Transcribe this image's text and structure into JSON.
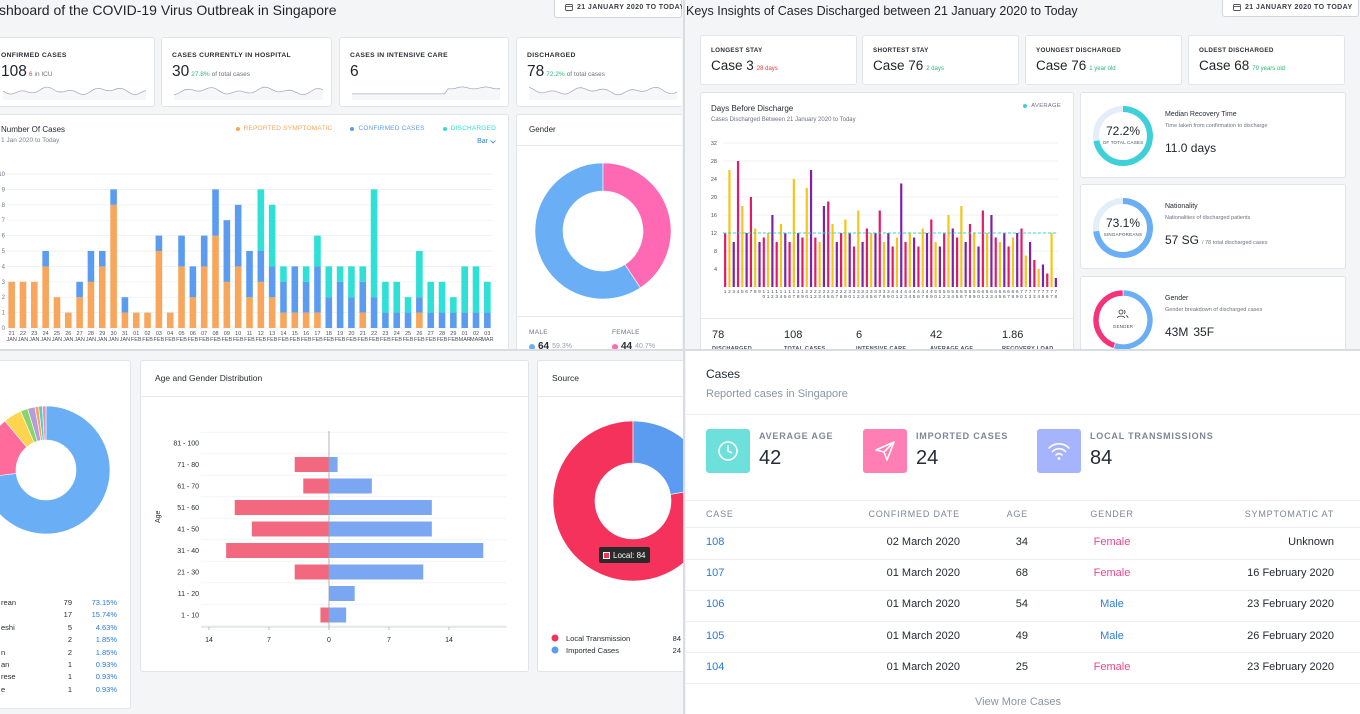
{
  "dashboard": {
    "title": "shboard of the COVID-19 Virus Outbreak in Singapore",
    "date_range": "21 JANUARY 2020 TO TODAY",
    "stats": [
      {
        "label": "ONFIRMED CASES",
        "value": 108,
        "highlight": "6",
        "note": "in ICU",
        "highlight_color": "#e53935"
      },
      {
        "label": "CASES CURRENTLY IN HOSPITAL",
        "value": 30,
        "highlight": "27.8%",
        "note": "of total cases",
        "highlight_color": "#2bb673"
      },
      {
        "label": "CASES IN INTENSIVE CARE",
        "value": 6
      },
      {
        "label": "DISCHARGED",
        "value": 78,
        "highlight": "72.2%",
        "note": "of total cases",
        "highlight_color": "#2bb673"
      }
    ],
    "cases_chart": {
      "type": "bar",
      "stacked": true,
      "title": "Number Of Cases",
      "subtitle": "1 Jan 2020 to Today",
      "toggle": "Bar",
      "categories": [
        "21 JAN",
        "22 JAN",
        "23 JAN",
        "24 JAN",
        "25 JAN",
        "26 JAN",
        "27 JAN",
        "28 JAN",
        "29 JAN",
        "30 JAN",
        "31 JAN",
        "01 FEB",
        "02 FEB",
        "03 FEB",
        "04 FEB",
        "05 FEB",
        "06 FEB",
        "07 FEB",
        "08 FEB",
        "09 FEB",
        "10 FEB",
        "11 FEB",
        "12 FEB",
        "13 FEB",
        "14 FEB",
        "15 FEB",
        "16 FEB",
        "17 FEB",
        "18 FEB",
        "19 FEB",
        "20 FEB",
        "21 FEB",
        "22 FEB",
        "23 FEB",
        "24 FEB",
        "25 FEB",
        "26 FEB",
        "27 FEB",
        "28 FEB",
        "29 FEB",
        "01 MAR",
        "02 MAR",
        "03 MAR"
      ],
      "series": [
        {
          "name": "REPORTED SYMPTOMATIC",
          "color": "#f7a65c",
          "values": [
            3,
            3,
            3,
            4,
            2,
            1,
            2,
            3,
            4,
            8,
            1,
            1,
            1,
            5,
            1,
            4,
            2,
            4,
            6,
            3,
            4,
            2,
            3,
            2,
            1,
            1,
            1,
            1,
            0,
            0,
            0,
            1,
            0,
            0,
            0,
            0,
            1,
            0,
            0,
            0,
            0,
            0,
            0
          ]
        },
        {
          "name": "CONFIRMED CASES",
          "color": "#5b9cf0",
          "values": [
            0,
            0,
            0,
            1,
            0,
            0,
            1,
            2,
            1,
            1,
            1,
            0,
            0,
            1,
            0,
            2,
            2,
            2,
            3,
            4,
            4,
            3,
            2,
            2,
            2,
            3,
            2,
            3,
            2,
            3,
            2,
            2,
            2,
            1,
            1,
            1,
            1,
            1,
            1,
            1,
            1,
            1,
            1
          ]
        },
        {
          "name": "DISCHARGED",
          "color": "#2ee0d6",
          "values": [
            0,
            0,
            0,
            0,
            0,
            0,
            0,
            0,
            0,
            0,
            0,
            0,
            0,
            0,
            0,
            0,
            0,
            0,
            0,
            0,
            0,
            0,
            4,
            4,
            1,
            0,
            1,
            2,
            2,
            1,
            2,
            1,
            7,
            2,
            2,
            1,
            3,
            2,
            2,
            1,
            3,
            3,
            2
          ]
        }
      ],
      "ylim": [
        0,
        10
      ],
      "yticks": [
        0,
        1,
        2,
        3,
        4,
        5,
        6,
        7,
        8,
        9,
        10
      ],
      "grid": true
    },
    "gender_chart": {
      "type": "donut",
      "title": "Gender",
      "categories": [
        "MALE",
        "FEMALE"
      ],
      "values": [
        64,
        44
      ],
      "percent_labels": [
        "59.3%",
        "40.7%"
      ],
      "colors": [
        "#6aaef5",
        "#ff69b4"
      ]
    }
  },
  "insights": {
    "title": "Keys Insights of Cases Discharged between 21 January 2020 to Today",
    "date_range": "21 JANUARY 2020 TO TODAY",
    "stats": [
      {
        "label": "LONGEST STAY",
        "value": "Case 3",
        "note": "28 days",
        "note_color": "#e53935"
      },
      {
        "label": "SHORTEST STAY",
        "value": "Case 76",
        "note": "2 days",
        "note_color": "#2bb673"
      },
      {
        "label": "YOUNGEST DISCHARGED",
        "value": "Case 76",
        "note": "1 year old",
        "note_color": "#2bb673"
      },
      {
        "label": "OLDEST DISCHARGED",
        "value": "Case 68",
        "note": "79 years old",
        "note_color": "#2bb673"
      }
    ],
    "discharge_chart": {
      "type": "bar",
      "title": "Days Before Discharge",
      "subtitle": "Cases Discharged Between 21 January 2020 to Today",
      "legend": "AVERAGE",
      "average": 12,
      "average_color": "#3ed0d8",
      "categories": [
        1,
        2,
        3,
        4,
        5,
        6,
        7,
        8,
        9,
        10,
        11,
        12,
        13,
        14,
        15,
        16,
        17,
        18,
        19,
        20,
        21,
        22,
        23,
        24,
        25,
        26,
        27,
        28,
        29,
        30,
        31,
        32,
        33,
        34,
        35,
        36,
        37,
        38,
        39,
        40,
        41,
        42,
        43,
        44,
        45,
        46,
        47,
        48,
        49,
        50,
        51,
        52,
        53,
        54,
        55,
        56,
        57,
        58,
        59,
        60,
        61,
        62,
        63,
        64,
        65,
        66,
        67,
        68,
        69,
        70,
        71,
        72,
        73,
        74,
        75,
        76,
        77,
        78
      ],
      "values": [
        12,
        26,
        10,
        28,
        18,
        12,
        20,
        13,
        10,
        11,
        12,
        16,
        10,
        14,
        12,
        10,
        24,
        12,
        11,
        22,
        26,
        11,
        10,
        18,
        19,
        14,
        10,
        12,
        15,
        12,
        9,
        17,
        10,
        13,
        12,
        12,
        17,
        10,
        12,
        9,
        11,
        23,
        10,
        12,
        11,
        9,
        13,
        12,
        15,
        10,
        9,
        12,
        16,
        13,
        11,
        18,
        10,
        14,
        12,
        9,
        17,
        12,
        16,
        11,
        10,
        12,
        9,
        11,
        12,
        13,
        7,
        10,
        6,
        4,
        5,
        3,
        12,
        2
      ],
      "palette": [
        "#e3196b",
        "#f5c518",
        "#7b22a8"
      ],
      "ylim": [
        0,
        32
      ],
      "yticks": [
        4,
        8,
        12,
        16,
        20,
        24,
        28,
        32
      ],
      "grid": true
    },
    "summary": [
      {
        "value": 78,
        "label": "DISCHARGED"
      },
      {
        "value": 108,
        "label": "TOTAL CASES"
      },
      {
        "value": 6,
        "label": "INTENSIVE CARE"
      },
      {
        "value": 42,
        "label": "AVERAGE AGE"
      },
      {
        "value": 1.86,
        "label": "RECOVERY LOAD"
      }
    ],
    "cards": [
      {
        "type": "ring",
        "value": 72.2,
        "value_label": "72.2%",
        "caption": "OF TOTAL CASES",
        "color": "#3ed0d8",
        "title": "Median Recovery Time",
        "subtitle": "Time taken from confirmation to discharge",
        "figure": "11.0 days"
      },
      {
        "type": "ring",
        "value": 73.1,
        "value_label": "73.1%",
        "caption": "SINGAPOREANS",
        "color": "#6aaef5",
        "title": "Nationality",
        "subtitle": "Nationalities of discharged patients",
        "figure": "57 SG",
        "figure_note": "/ 78 total discharged cases"
      },
      {
        "type": "donut",
        "caption": "GENDER",
        "values": [
          43,
          35
        ],
        "value_labels": [
          "43M",
          "35F"
        ],
        "colors": [
          "#6aaef5",
          "#f5327a"
        ],
        "title": "Gender",
        "subtitle": "Gender breakdown of discharged cases"
      }
    ]
  },
  "distribution": {
    "nationality_chart": {
      "type": "donut",
      "categories": [
        "rean",
        null,
        "eshi",
        null,
        "n",
        "an",
        "rese",
        "e"
      ],
      "values": [
        79,
        17,
        5,
        2,
        2,
        1,
        1,
        1
      ],
      "percent_labels": [
        "73.15%",
        "15.74%",
        "4.63%",
        "1.85%",
        "1.85%",
        "0.93%",
        "0.93%",
        "0.93%"
      ],
      "colors": [
        "#6aaef5",
        "#ff6b9a",
        "#ffd54f",
        "#8bd36b",
        "#b39ddb",
        "#ff9f5a",
        "#4dd0c8",
        "#f48fb1"
      ]
    },
    "age_chart": {
      "type": "bar",
      "orientation": "horizontal",
      "title": "Age and Gender Distribution",
      "y_label": "Age",
      "categories": [
        "1 - 10",
        "11 - 20",
        "21 - 30",
        "31 - 40",
        "41 - 50",
        "51 - 60",
        "61 - 70",
        "71 - 80",
        "81 - 100"
      ],
      "series": [
        {
          "color": "#f2687f",
          "values": [
            -1,
            0,
            -4,
            -12,
            -9,
            -11,
            -3,
            -4,
            0
          ]
        },
        {
          "color": "#7ba7f2",
          "values": [
            2,
            3,
            11,
            18,
            12,
            12,
            5,
            1,
            0
          ]
        }
      ],
      "xlim": [
        -14,
        20
      ],
      "xticks": [
        {
          "value": -14,
          "label": "14"
        },
        {
          "value": -7,
          "label": "7"
        },
        0,
        7,
        14
      ]
    },
    "source_chart": {
      "type": "donut",
      "title": "Source",
      "categories": [
        "Local Transmission",
        "Imported Cases"
      ],
      "values": [
        84,
        24
      ],
      "colors": [
        "#f5325c",
        "#5b9cf0"
      ],
      "tooltip": "Local: 84"
    }
  },
  "cases": {
    "title": "Cases",
    "subtitle": "Reported cases in Singapore",
    "stats": [
      {
        "label": "AVERAGE AGE",
        "value": 42,
        "color": "#6ee0dc"
      },
      {
        "label": "IMPORTED CASES",
        "value": 24,
        "color": "#ff7eb3"
      },
      {
        "label": "LOCAL TRANSMISSIONS",
        "value": 84,
        "color": "#a5b4fc"
      }
    ],
    "table": {
      "header": [
        "CASE",
        "CONFIRMED DATE",
        "AGE",
        "GENDER",
        "SYMPTOMATIC AT"
      ],
      "rows": [
        [
          "108",
          "02 March 2020",
          34,
          "Female",
          "Unknown"
        ],
        [
          "107",
          "01 March 2020",
          68,
          "Female",
          "16 February 2020"
        ],
        [
          "106",
          "01 March 2020",
          54,
          "Male",
          "23 February 2020"
        ],
        [
          "105",
          "01 March 2020",
          49,
          "Male",
          "26 February 2020"
        ],
        [
          "104",
          "01 March 2020",
          25,
          "Female",
          "23 February 2020"
        ]
      ],
      "gender_colors": {
        "Female": "#e8488a",
        "Male": "#2f7fd8"
      }
    },
    "more": "View More Cases"
  }
}
